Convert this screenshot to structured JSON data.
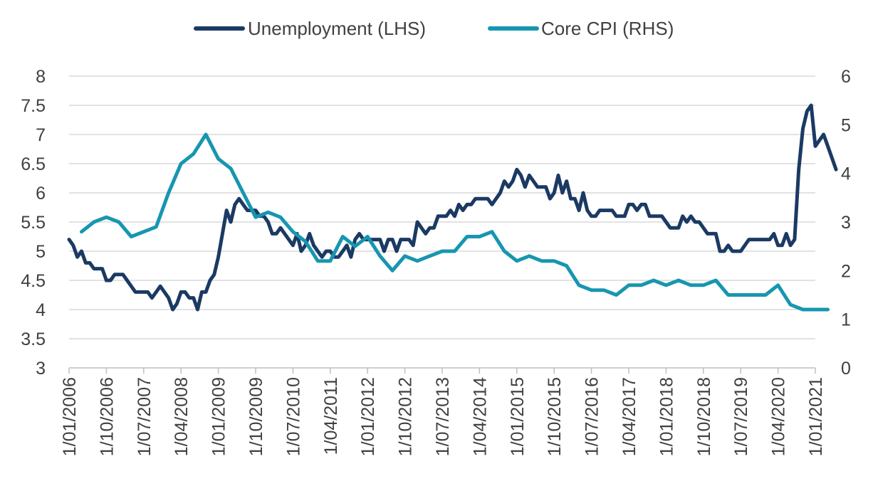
{
  "chart_data": {
    "type": "line",
    "title": "",
    "xlabel": "",
    "ylabel_left": "",
    "ylabel_right": "",
    "x_ticks": [
      "1/01/2006",
      "1/10/2006",
      "1/07/2007",
      "1/04/2008",
      "1/01/2009",
      "1/10/2009",
      "1/07/2010",
      "1/04/2011",
      "1/01/2012",
      "1/10/2012",
      "1/07/2013",
      "1/04/2014",
      "1/01/2015",
      "1/10/2015",
      "1/07/2016",
      "1/04/2017",
      "1/01/2018",
      "1/10/2018",
      "1/07/2019",
      "1/04/2020",
      "1/01/2021"
    ],
    "y_left": {
      "min": 3,
      "max": 8,
      "step": 0.5,
      "ticks": [
        "3",
        "3.5",
        "4",
        "4.5",
        "5",
        "5.5",
        "6",
        "6.5",
        "7",
        "7.5",
        "8"
      ]
    },
    "y_right": {
      "min": 0,
      "max": 6,
      "step": 1,
      "ticks": [
        "0",
        "1",
        "2",
        "3",
        "4",
        "5",
        "6"
      ]
    },
    "grid": "horizontal",
    "legend": "top-center",
    "series": [
      {
        "name": "Unemployment (LHS)",
        "axis": "left",
        "color": "#1b3a63",
        "points": [
          [
            "2006-01",
            5.2
          ],
          [
            "2006-02",
            5.1
          ],
          [
            "2006-03",
            4.9
          ],
          [
            "2006-04",
            5.0
          ],
          [
            "2006-05",
            4.8
          ],
          [
            "2006-06",
            4.8
          ],
          [
            "2006-07",
            4.7
          ],
          [
            "2006-08",
            4.7
          ],
          [
            "2006-09",
            4.7
          ],
          [
            "2006-10",
            4.5
          ],
          [
            "2006-11",
            4.5
          ],
          [
            "2006-12",
            4.6
          ],
          [
            "2007-01",
            4.6
          ],
          [
            "2007-02",
            4.6
          ],
          [
            "2007-03",
            4.5
          ],
          [
            "2007-04",
            4.4
          ],
          [
            "2007-05",
            4.3
          ],
          [
            "2007-06",
            4.3
          ],
          [
            "2007-07",
            4.3
          ],
          [
            "2007-08",
            4.3
          ],
          [
            "2007-09",
            4.2
          ],
          [
            "2007-10",
            4.3
          ],
          [
            "2007-11",
            4.4
          ],
          [
            "2007-12",
            4.3
          ],
          [
            "2008-01",
            4.2
          ],
          [
            "2008-02",
            4.0
          ],
          [
            "2008-03",
            4.1
          ],
          [
            "2008-04",
            4.3
          ],
          [
            "2008-05",
            4.3
          ],
          [
            "2008-06",
            4.2
          ],
          [
            "2008-07",
            4.2
          ],
          [
            "2008-08",
            4.0
          ],
          [
            "2008-09",
            4.3
          ],
          [
            "2008-10",
            4.3
          ],
          [
            "2008-11",
            4.5
          ],
          [
            "2008-12",
            4.6
          ],
          [
            "2009-01",
            4.9
          ],
          [
            "2009-02",
            5.3
          ],
          [
            "2009-03",
            5.7
          ],
          [
            "2009-04",
            5.5
          ],
          [
            "2009-05",
            5.8
          ],
          [
            "2009-06",
            5.9
          ],
          [
            "2009-07",
            5.8
          ],
          [
            "2009-08",
            5.7
          ],
          [
            "2009-09",
            5.7
          ],
          [
            "2009-10",
            5.7
          ],
          [
            "2009-11",
            5.6
          ],
          [
            "2009-12",
            5.6
          ],
          [
            "2010-01",
            5.5
          ],
          [
            "2010-02",
            5.3
          ],
          [
            "2010-03",
            5.3
          ],
          [
            "2010-04",
            5.4
          ],
          [
            "2010-05",
            5.3
          ],
          [
            "2010-06",
            5.2
          ],
          [
            "2010-07",
            5.1
          ],
          [
            "2010-08",
            5.3
          ],
          [
            "2010-09",
            5.0
          ],
          [
            "2010-10",
            5.1
          ],
          [
            "2010-11",
            5.3
          ],
          [
            "2010-12",
            5.1
          ],
          [
            "2011-01",
            5.0
          ],
          [
            "2011-02",
            4.9
          ],
          [
            "2011-03",
            5.0
          ],
          [
            "2011-04",
            5.0
          ],
          [
            "2011-05",
            4.9
          ],
          [
            "2011-06",
            4.9
          ],
          [
            "2011-07",
            5.0
          ],
          [
            "2011-08",
            5.1
          ],
          [
            "2011-09",
            4.9
          ],
          [
            "2011-10",
            5.2
          ],
          [
            "2011-11",
            5.3
          ],
          [
            "2011-12",
            5.2
          ],
          [
            "2012-01",
            5.2
          ],
          [
            "2012-02",
            5.2
          ],
          [
            "2012-03",
            5.2
          ],
          [
            "2012-04",
            5.2
          ],
          [
            "2012-05",
            5.0
          ],
          [
            "2012-06",
            5.2
          ],
          [
            "2012-07",
            5.2
          ],
          [
            "2012-08",
            5.0
          ],
          [
            "2012-09",
            5.2
          ],
          [
            "2012-10",
            5.2
          ],
          [
            "2012-11",
            5.2
          ],
          [
            "2012-12",
            5.1
          ],
          [
            "2013-01",
            5.5
          ],
          [
            "2013-02",
            5.4
          ],
          [
            "2013-03",
            5.3
          ],
          [
            "2013-04",
            5.4
          ],
          [
            "2013-05",
            5.4
          ],
          [
            "2013-06",
            5.6
          ],
          [
            "2013-07",
            5.6
          ],
          [
            "2013-08",
            5.6
          ],
          [
            "2013-09",
            5.7
          ],
          [
            "2013-10",
            5.6
          ],
          [
            "2013-11",
            5.8
          ],
          [
            "2013-12",
            5.7
          ],
          [
            "2014-01",
            5.8
          ],
          [
            "2014-02",
            5.8
          ],
          [
            "2014-03",
            5.9
          ],
          [
            "2014-04",
            5.9
          ],
          [
            "2014-05",
            5.9
          ],
          [
            "2014-06",
            5.9
          ],
          [
            "2014-07",
            5.8
          ],
          [
            "2014-08",
            5.9
          ],
          [
            "2014-09",
            6.0
          ],
          [
            "2014-10",
            6.2
          ],
          [
            "2014-11",
            6.1
          ],
          [
            "2014-12",
            6.2
          ],
          [
            "2015-01",
            6.4
          ],
          [
            "2015-02",
            6.3
          ],
          [
            "2015-03",
            6.1
          ],
          [
            "2015-04",
            6.3
          ],
          [
            "2015-05",
            6.2
          ],
          [
            "2015-06",
            6.1
          ],
          [
            "2015-07",
            6.1
          ],
          [
            "2015-08",
            6.1
          ],
          [
            "2015-09",
            5.9
          ],
          [
            "2015-10",
            6.0
          ],
          [
            "2015-11",
            6.3
          ],
          [
            "2015-12",
            6.0
          ],
          [
            "2016-01",
            6.2
          ],
          [
            "2016-02",
            5.9
          ],
          [
            "2016-03",
            5.9
          ],
          [
            "2016-04",
            5.7
          ],
          [
            "2016-05",
            6.0
          ],
          [
            "2016-06",
            5.7
          ],
          [
            "2016-07",
            5.6
          ],
          [
            "2016-08",
            5.6
          ],
          [
            "2016-09",
            5.7
          ],
          [
            "2016-10",
            5.7
          ],
          [
            "2016-11",
            5.7
          ],
          [
            "2016-12",
            5.7
          ],
          [
            "2017-01",
            5.6
          ],
          [
            "2017-02",
            5.6
          ],
          [
            "2017-03",
            5.6
          ],
          [
            "2017-04",
            5.8
          ],
          [
            "2017-05",
            5.8
          ],
          [
            "2017-06",
            5.7
          ],
          [
            "2017-07",
            5.8
          ],
          [
            "2017-08",
            5.8
          ],
          [
            "2017-09",
            5.6
          ],
          [
            "2017-10",
            5.6
          ],
          [
            "2017-11",
            5.6
          ],
          [
            "2017-12",
            5.6
          ],
          [
            "2018-01",
            5.5
          ],
          [
            "2018-02",
            5.4
          ],
          [
            "2018-03",
            5.4
          ],
          [
            "2018-04",
            5.4
          ],
          [
            "2018-05",
            5.6
          ],
          [
            "2018-06",
            5.5
          ],
          [
            "2018-07",
            5.6
          ],
          [
            "2018-08",
            5.5
          ],
          [
            "2018-09",
            5.5
          ],
          [
            "2018-10",
            5.4
          ],
          [
            "2018-11",
            5.3
          ],
          [
            "2018-12",
            5.3
          ],
          [
            "2019-01",
            5.3
          ],
          [
            "2019-02",
            5.0
          ],
          [
            "2019-03",
            5.0
          ],
          [
            "2019-04",
            5.1
          ],
          [
            "2019-05",
            5.0
          ],
          [
            "2019-06",
            5.0
          ],
          [
            "2019-07",
            5.0
          ],
          [
            "2019-08",
            5.1
          ],
          [
            "2019-09",
            5.2
          ],
          [
            "2019-10",
            5.2
          ],
          [
            "2019-11",
            5.2
          ],
          [
            "2019-12",
            5.2
          ],
          [
            "2020-01",
            5.2
          ],
          [
            "2020-02",
            5.2
          ],
          [
            "2020-03",
            5.3
          ],
          [
            "2020-04",
            5.1
          ],
          [
            "2020-05",
            5.1
          ],
          [
            "2020-06",
            5.3
          ],
          [
            "2020-07",
            5.1
          ],
          [
            "2020-08",
            5.2
          ],
          [
            "2020-09",
            6.4
          ],
          [
            "2020-10",
            7.1
          ],
          [
            "2020-11",
            7.4
          ],
          [
            "2020-12",
            7.5
          ],
          [
            "2021-01",
            6.8
          ],
          [
            "2021-02",
            6.9
          ],
          [
            "2021-03",
            7.0
          ],
          [
            "2021-04",
            6.8
          ],
          [
            "2021-05",
            6.6
          ],
          [
            "2021-06",
            6.4
          ]
        ]
      },
      {
        "name": "Core CPI (RHS)",
        "axis": "right",
        "color": "#1796b0",
        "points": [
          [
            "2006-04",
            2.8
          ],
          [
            "2006-07",
            3.0
          ],
          [
            "2006-10",
            3.1
          ],
          [
            "2007-01",
            3.0
          ],
          [
            "2007-04",
            2.7
          ],
          [
            "2007-07",
            2.8
          ],
          [
            "2007-10",
            2.9
          ],
          [
            "2008-01",
            3.6
          ],
          [
            "2008-04",
            4.2
          ],
          [
            "2008-07",
            4.4
          ],
          [
            "2008-10",
            4.8
          ],
          [
            "2009-01",
            4.3
          ],
          [
            "2009-04",
            4.1
          ],
          [
            "2009-07",
            3.6
          ],
          [
            "2009-10",
            3.1
          ],
          [
            "2010-01",
            3.2
          ],
          [
            "2010-04",
            3.1
          ],
          [
            "2010-07",
            2.8
          ],
          [
            "2010-10",
            2.6
          ],
          [
            "2011-01",
            2.2
          ],
          [
            "2011-04",
            2.2
          ],
          [
            "2011-07",
            2.7
          ],
          [
            "2011-10",
            2.5
          ],
          [
            "2012-01",
            2.7
          ],
          [
            "2012-04",
            2.3
          ],
          [
            "2012-07",
            2.0
          ],
          [
            "2012-10",
            2.3
          ],
          [
            "2013-01",
            2.2
          ],
          [
            "2013-04",
            2.3
          ],
          [
            "2013-07",
            2.4
          ],
          [
            "2013-10",
            2.4
          ],
          [
            "2014-01",
            2.7
          ],
          [
            "2014-04",
            2.7
          ],
          [
            "2014-07",
            2.8
          ],
          [
            "2014-10",
            2.4
          ],
          [
            "2015-01",
            2.2
          ],
          [
            "2015-04",
            2.3
          ],
          [
            "2015-07",
            2.2
          ],
          [
            "2015-10",
            2.2
          ],
          [
            "2016-01",
            2.1
          ],
          [
            "2016-04",
            1.7
          ],
          [
            "2016-07",
            1.6
          ],
          [
            "2016-10",
            1.6
          ],
          [
            "2017-01",
            1.5
          ],
          [
            "2017-04",
            1.7
          ],
          [
            "2017-07",
            1.7
          ],
          [
            "2017-10",
            1.8
          ],
          [
            "2018-01",
            1.7
          ],
          [
            "2018-04",
            1.8
          ],
          [
            "2018-07",
            1.7
          ],
          [
            "2018-10",
            1.7
          ],
          [
            "2019-01",
            1.8
          ],
          [
            "2019-04",
            1.5
          ],
          [
            "2019-07",
            1.5
          ],
          [
            "2019-10",
            1.5
          ],
          [
            "2020-01",
            1.5
          ],
          [
            "2020-04",
            1.7
          ],
          [
            "2020-07",
            1.3
          ],
          [
            "2020-10",
            1.2
          ],
          [
            "2021-01",
            1.2
          ],
          [
            "2021-04",
            1.2
          ]
        ]
      }
    ]
  }
}
